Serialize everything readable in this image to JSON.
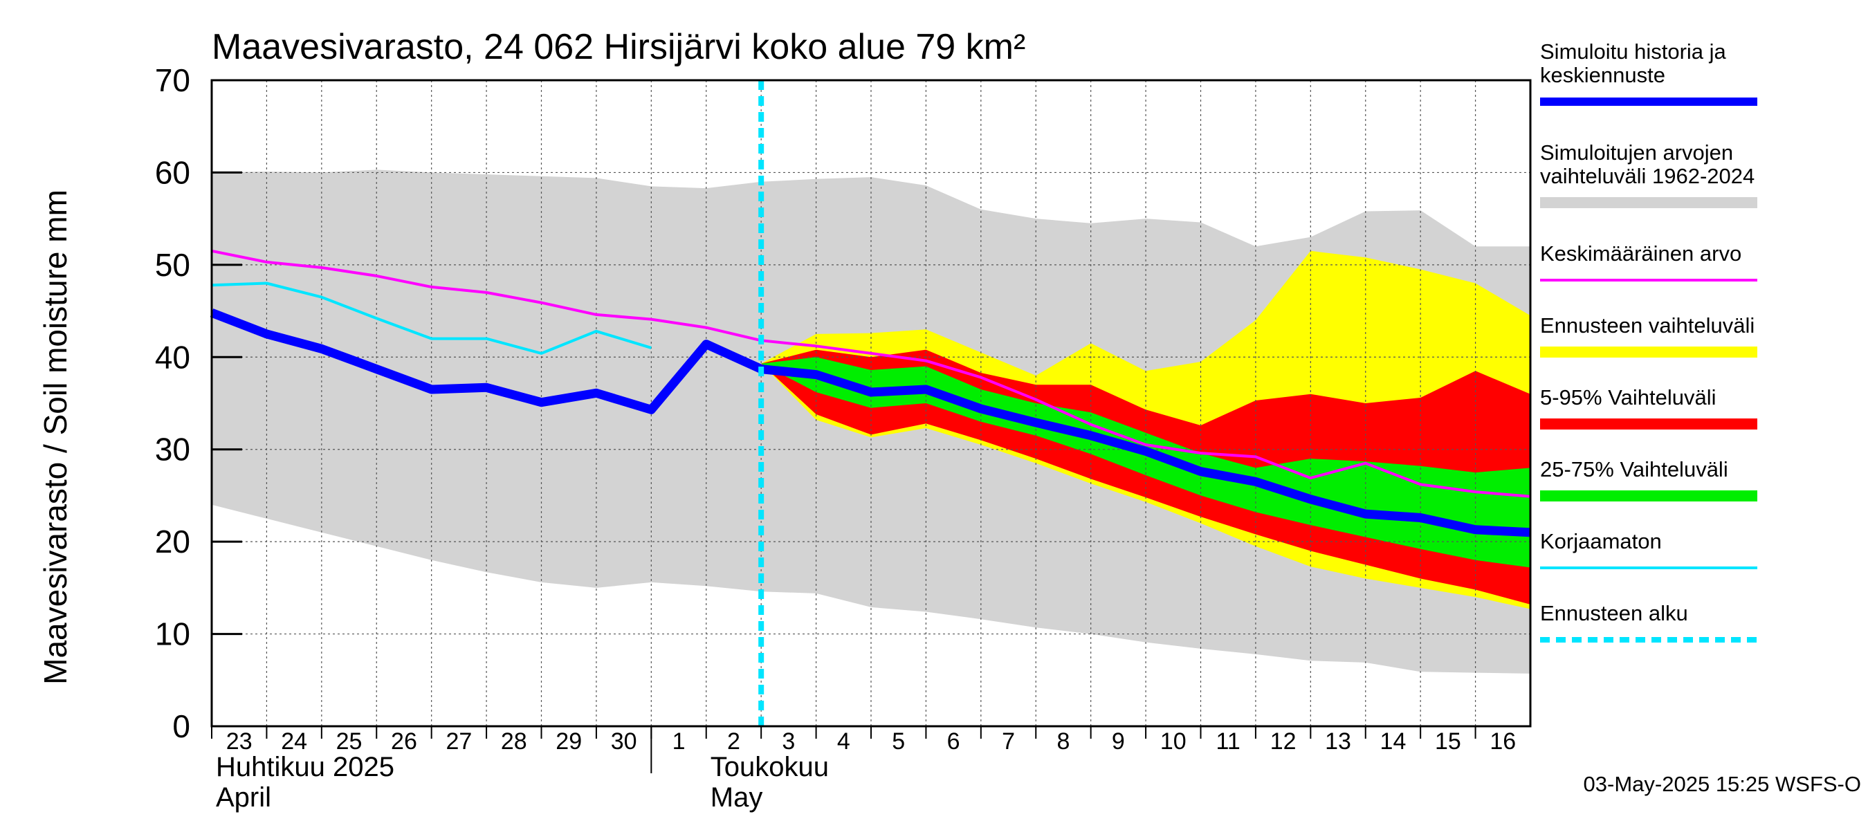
{
  "chart_data": {
    "type": "area",
    "title": "Maavesivarasto, 24 062 Hirsijärvi koko alue 79 km²",
    "ylabel": "Maavesivarasto / Soil moisture   mm",
    "ylim": [
      0,
      70
    ],
    "yticks": [
      0,
      10,
      20,
      30,
      40,
      50,
      60,
      70
    ],
    "xlim": [
      0,
      24
    ],
    "grid": true,
    "legend_position": "right",
    "x_tick_labels": [
      "23",
      "24",
      "25",
      "26",
      "27",
      "28",
      "29",
      "30",
      "1",
      "2",
      "3",
      "4",
      "5",
      "6",
      "7",
      "8",
      "9",
      "10",
      "11",
      "12",
      "13",
      "14",
      "15",
      "16"
    ],
    "month_labels": [
      {
        "line1": "Huhtikuu  2025",
        "line2": "April",
        "day_index": 0
      },
      {
        "line1": "Toukokuu",
        "line2": "May",
        "day_index": 9
      }
    ],
    "month_divider_day_index": 8,
    "forecast_start_day_index": 10,
    "footer": "03-May-2025 15:25 WSFS-O",
    "legend": [
      {
        "label": "Simuloitu historia ja keskiennuste",
        "lines": [
          "Simuloitu historia ja",
          "keskiennuste"
        ],
        "color": "#0000ff",
        "kind": "thick"
      },
      {
        "label": "Simuloitujen arvojen vaihteluväli 1962-2024",
        "lines": [
          "Simuloitujen arvojen",
          "vaihteluväli 1962-2024"
        ],
        "color": "#d3d3d3",
        "kind": "band"
      },
      {
        "label": "Keskimääräinen arvo",
        "lines": [
          "Keskimääräinen arvo"
        ],
        "color": "#ff00ff",
        "kind": "thin"
      },
      {
        "label": "Ennusteen vaihteluväli",
        "lines": [
          "Ennusteen vaihteluväli"
        ],
        "color": "#ffff00",
        "kind": "band"
      },
      {
        "label": "5-95% Vaihteluväli",
        "lines": [
          "5-95% Vaihteluväli"
        ],
        "color": "#ff0000",
        "kind": "band"
      },
      {
        "label": "25-75% Vaihteluväli",
        "lines": [
          "25-75% Vaihteluväli"
        ],
        "color": "#00ee00",
        "kind": "band"
      },
      {
        "label": "Korjaamaton",
        "lines": [
          "Korjaamaton"
        ],
        "color": "#00e5ff",
        "kind": "thin"
      },
      {
        "label": "Ennusteen alku",
        "lines": [
          "Ennusteen alku"
        ],
        "color": "#00e5ff",
        "kind": "dashed"
      }
    ],
    "series": {
      "historical_range": {
        "color": "#d3d3d3",
        "x": [
          0,
          1,
          2,
          3,
          4,
          5,
          6,
          7,
          8,
          9,
          10,
          11,
          12,
          13,
          14,
          15,
          16,
          17,
          18,
          19,
          20,
          21,
          22,
          23,
          24
        ],
        "upper": [
          60.0,
          60.1,
          60.0,
          60.3,
          60.0,
          59.8,
          59.6,
          59.4,
          58.5,
          58.3,
          59.0,
          59.3,
          59.5,
          58.6,
          56.0,
          55.0,
          54.5,
          55.0,
          54.6,
          52.0,
          53.0,
          55.8,
          55.9,
          52.0,
          52.0
        ],
        "lower": [
          24.0,
          22.5,
          21.0,
          19.5,
          18.0,
          16.7,
          15.6,
          15.0,
          15.6,
          15.2,
          14.6,
          14.4,
          12.9,
          12.4,
          11.6,
          10.7,
          10.0,
          9.1,
          8.4,
          7.8,
          7.1,
          6.9,
          5.9,
          5.8,
          5.7
        ]
      },
      "forecast_range": {
        "color": "#ffff00",
        "x": [
          10,
          11,
          12,
          13,
          14,
          15,
          16,
          17,
          18,
          19,
          20,
          21,
          22,
          23,
          24
        ],
        "upper": [
          39.3,
          42.5,
          42.6,
          43.0,
          40.5,
          38.0,
          41.5,
          38.5,
          39.5,
          44.0,
          51.5,
          50.8,
          49.5,
          48.0,
          44.5
        ],
        "lower": [
          39.3,
          33.2,
          31.3,
          32.3,
          30.5,
          28.5,
          26.3,
          24.3,
          22.0,
          19.5,
          17.3,
          16.0,
          15.0,
          14.0,
          12.7
        ]
      },
      "p5_95": {
        "color": "#ff0000",
        "x": [
          10,
          11,
          12,
          13,
          14,
          15,
          16,
          17,
          18,
          19,
          20,
          21,
          22,
          23,
          24
        ],
        "upper": [
          39.3,
          40.8,
          40.0,
          40.8,
          38.3,
          37.0,
          37.0,
          34.3,
          32.6,
          35.3,
          36.0,
          35.0,
          35.6,
          38.5,
          36.0
        ],
        "lower": [
          39.3,
          33.8,
          31.6,
          32.8,
          31.0,
          29.0,
          26.8,
          24.8,
          22.7,
          20.8,
          19.0,
          17.5,
          16.0,
          14.8,
          13.2
        ]
      },
      "p25_75": {
        "color": "#00ee00",
        "x": [
          10,
          11,
          12,
          13,
          14,
          15,
          16,
          17,
          18,
          19,
          20,
          21,
          22,
          23,
          24
        ],
        "upper": [
          39.3,
          40.0,
          38.6,
          39.0,
          36.5,
          35.0,
          34.0,
          31.8,
          29.6,
          28.0,
          29.0,
          28.7,
          28.2,
          27.5,
          28.0
        ],
        "lower": [
          39.3,
          36.2,
          34.5,
          35.0,
          33.0,
          31.5,
          29.5,
          27.2,
          25.0,
          23.2,
          21.8,
          20.5,
          19.2,
          18.0,
          17.2
        ]
      },
      "mean": {
        "color": "#ff00ff",
        "x": [
          0,
          1,
          2,
          3,
          4,
          5,
          6,
          7,
          8,
          9,
          10,
          11,
          12,
          13,
          14,
          15,
          16,
          17,
          18,
          19,
          20,
          21,
          22,
          23,
          24
        ],
        "y": [
          51.5,
          50.3,
          49.7,
          48.8,
          47.6,
          47.0,
          45.9,
          44.6,
          44.1,
          43.2,
          41.8,
          41.2,
          40.4,
          39.6,
          37.8,
          35.4,
          32.7,
          30.5,
          29.6,
          29.2,
          26.9,
          28.5,
          26.2,
          25.4,
          24.9
        ]
      },
      "uncorrected": {
        "color": "#00e5ff",
        "x": [
          0,
          1,
          2,
          3,
          4,
          5,
          6,
          7,
          8
        ],
        "y": [
          47.8,
          48.0,
          46.5,
          44.2,
          42.0,
          42.0,
          40.4,
          42.8,
          41.0
        ]
      },
      "simulated": {
        "color": "#0000ff",
        "x": [
          0,
          1,
          2,
          3,
          4,
          5,
          6,
          7,
          8,
          9,
          10,
          11,
          12,
          13,
          14,
          15,
          16,
          17,
          18,
          19,
          20,
          21,
          22,
          23,
          24
        ],
        "y": [
          44.8,
          42.5,
          40.9,
          38.7,
          36.5,
          36.7,
          35.1,
          36.1,
          34.3,
          41.4,
          38.7,
          38.1,
          36.2,
          36.5,
          34.4,
          32.9,
          31.5,
          29.8,
          27.6,
          26.5,
          24.6,
          23.0,
          22.6,
          21.3,
          21.0
        ]
      }
    }
  }
}
